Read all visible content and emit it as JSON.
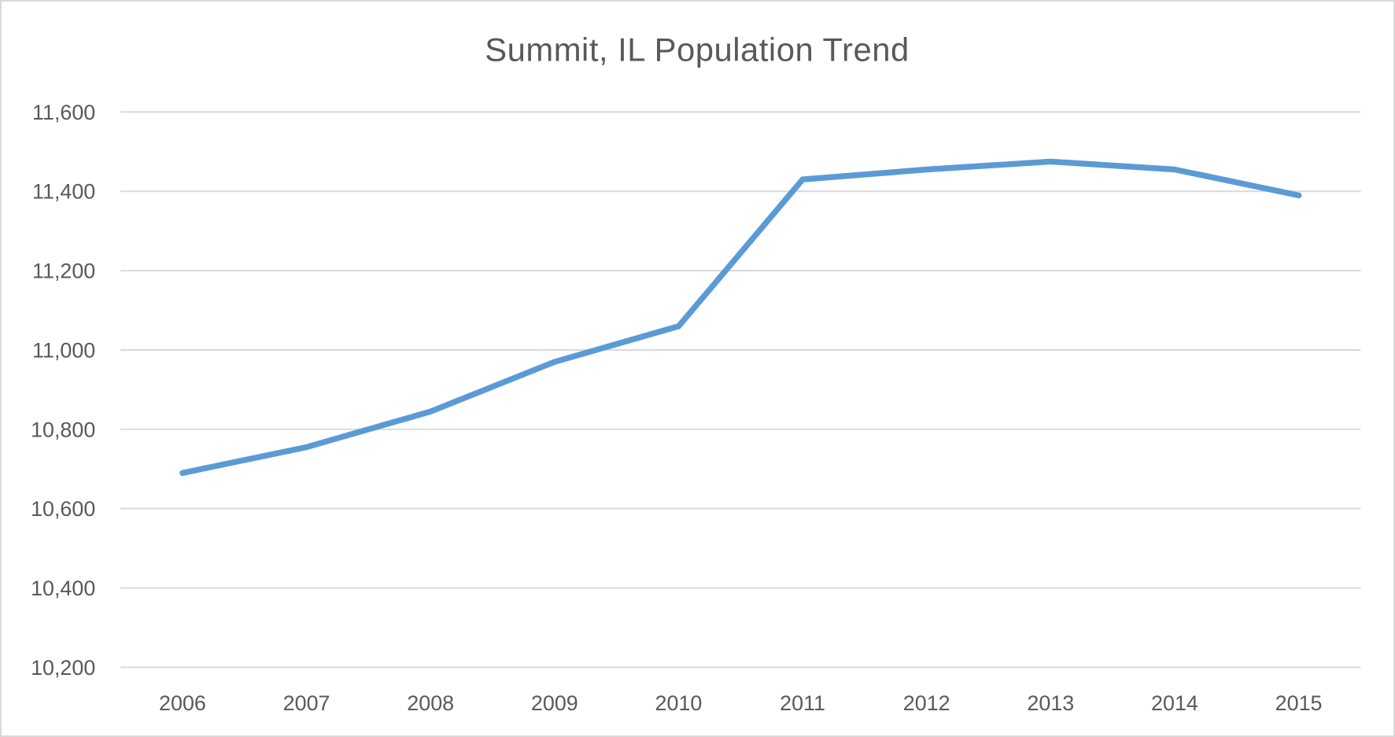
{
  "title": "Summit, IL Population Trend",
  "colors": {
    "line": "#5B9BD5",
    "grid": "#D9D9D9",
    "text": "#595959",
    "background": "#FFFFFF",
    "border": "#D9D9D9"
  },
  "chart_data": {
    "type": "line",
    "title": "Summit, IL Population Trend",
    "categories": [
      "2006",
      "2007",
      "2008",
      "2009",
      "2010",
      "2011",
      "2012",
      "2013",
      "2014",
      "2015"
    ],
    "series": [
      {
        "name": "Population",
        "values": [
          10690,
          10755,
          10845,
          10970,
          11060,
          11430,
          11455,
          11475,
          11455,
          11390
        ]
      }
    ],
    "xlabel": "",
    "ylabel": "",
    "ylim": [
      10200,
      11600
    ],
    "ytick_step": 200,
    "ytick_labels": [
      "10,200",
      "10,400",
      "10,600",
      "10,800",
      "11,000",
      "11,200",
      "11,400",
      "11,600"
    ],
    "grid": true,
    "legend_position": "none"
  }
}
